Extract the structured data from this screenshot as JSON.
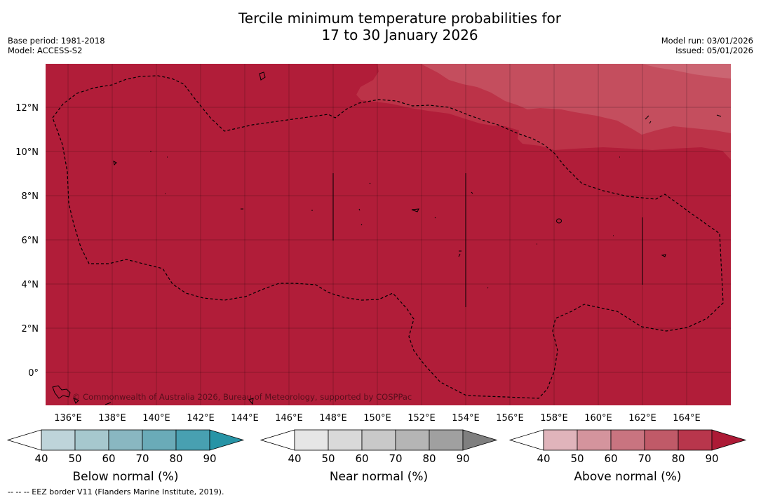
{
  "header": {
    "title_line1": "Tercile minimum temperature probabilities for",
    "title_line2": "17 to 30 January 2026",
    "base_period": "Base period: 1981-2018",
    "model": "Model: ACCESS-S2",
    "model_run": "Model run: 03/01/2026",
    "issued": "Issued: 05/01/2026"
  },
  "map": {
    "lat_labels": [
      "12°N",
      "10°N",
      "8°N",
      "6°N",
      "4°N",
      "2°N",
      "0°"
    ],
    "lon_labels": [
      "136°E",
      "138°E",
      "140°E",
      "142°E",
      "144°E",
      "146°E",
      "148°E",
      "150°E",
      "152°E",
      "154°E",
      "156°E",
      "158°E",
      "160°E",
      "162°E",
      "164°E"
    ],
    "copyright": "© Commonwealth of Australia 2026, Bureau of Meteorology, supported by COSPPac",
    "colors": {
      "above_90": "#b11d39",
      "above_80": "#bc3348",
      "above_70": "#c44e5e"
    }
  },
  "colorbars": [
    {
      "title": "Below normal (%)",
      "ticks": [
        "40",
        "50",
        "60",
        "70",
        "80",
        "90"
      ],
      "colors": [
        "#ffffff",
        "#bed4da",
        "#a6c8ce",
        "#89b7c1",
        "#6aabb8",
        "#48a0b1",
        "#2794a6"
      ]
    },
    {
      "title": "Near normal (%)",
      "ticks": [
        "40",
        "50",
        "60",
        "70",
        "80",
        "90"
      ],
      "colors": [
        "#ffffff",
        "#e6e6e6",
        "#d9d9d9",
        "#c9c9c9",
        "#b5b5b5",
        "#a0a0a0",
        "#7f7f7f"
      ]
    },
    {
      "title": "Above normal (%)",
      "ticks": [
        "40",
        "50",
        "60",
        "70",
        "80",
        "90"
      ],
      "colors": [
        "#ffffff",
        "#e0b4bb",
        "#d4949d",
        "#c97480",
        "#c05a68",
        "#b8364c",
        "#ad1a36"
      ]
    }
  ],
  "footnote": "-- -- -- EEZ border V11 (Flanders Marine Institute, 2019)."
}
